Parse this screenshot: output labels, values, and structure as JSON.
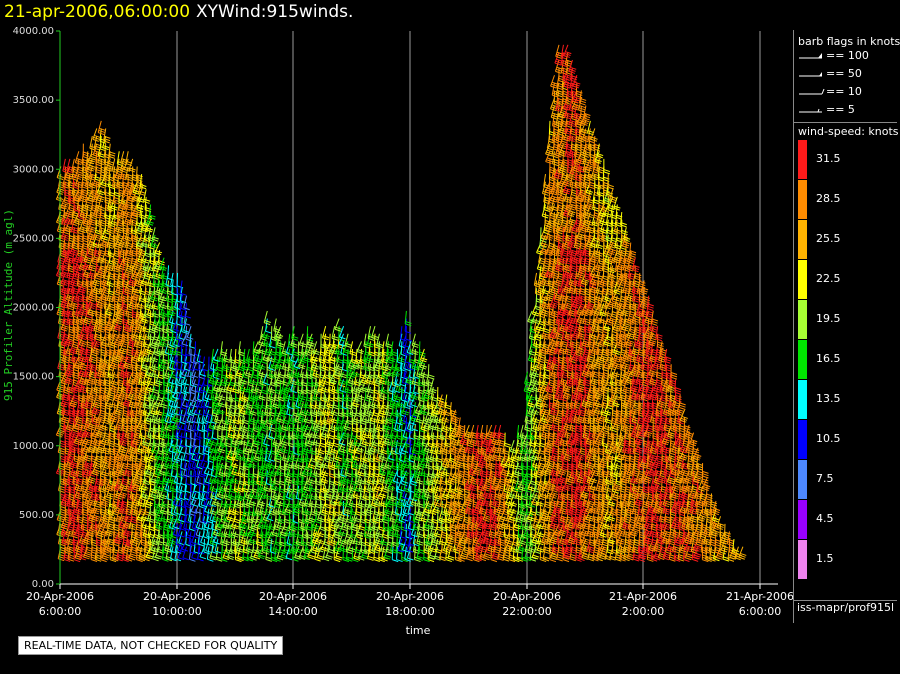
{
  "title": {
    "date": "21-apr-2006,06:00:00",
    "main": "XYWind:915winds."
  },
  "chart_data": {
    "type": "wind-barb time-height",
    "ylabel": "915 Profiler Altitude (m agl)",
    "xlabel": "time",
    "ylim": [
      0,
      4000
    ],
    "yticks": [
      "0.00",
      "500.00",
      "1000.00",
      "1500.00",
      "2000.00",
      "2500.00",
      "3000.00",
      "3500.00",
      "4000.00"
    ],
    "xticks": [
      {
        "date": "20-Apr-2006",
        "time": "6:00:00"
      },
      {
        "date": "20-Apr-2006",
        "time": "10:00:00"
      },
      {
        "date": "20-Apr-2006",
        "time": "14:00:00"
      },
      {
        "date": "20-Apr-2006",
        "time": "18:00:00"
      },
      {
        "date": "20-Apr-2006",
        "time": "22:00:00"
      },
      {
        "date": "21-Apr-2006",
        "time": "2:00:00"
      },
      {
        "date": "21-Apr-2006",
        "time": "6:00:00"
      }
    ],
    "grid": true,
    "profiles": [
      {
        "t": 0.05,
        "top": 3050,
        "speed": 29
      },
      {
        "t": 0.3,
        "top": 3100,
        "speed": 31
      },
      {
        "t": 0.55,
        "top": 3100,
        "speed": 31
      },
      {
        "t": 0.8,
        "top": 3100,
        "speed": 31
      },
      {
        "t": 1.05,
        "top": 3150,
        "speed": 30
      },
      {
        "t": 1.3,
        "top": 3200,
        "speed": 30
      },
      {
        "t": 1.55,
        "top": 3150,
        "speed": 29
      },
      {
        "t": 1.8,
        "top": 3250,
        "speed": 29
      },
      {
        "t": 2.05,
        "top": 3300,
        "speed": 28
      },
      {
        "t": 2.3,
        "top": 3350,
        "speed": 27
      },
      {
        "t": 2.55,
        "top": 3300,
        "speed": 27
      },
      {
        "t": 2.8,
        "top": 3200,
        "speed": 26
      },
      {
        "t": 3.05,
        "top": 3100,
        "speed": 27
      },
      {
        "t": 3.3,
        "top": 3150,
        "speed": 28
      },
      {
        "t": 3.55,
        "top": 3150,
        "speed": 29
      },
      {
        "t": 3.8,
        "top": 3150,
        "speed": 29
      },
      {
        "t": 4.05,
        "top": 3100,
        "speed": 28
      },
      {
        "t": 4.3,
        "top": 3050,
        "speed": 27
      },
      {
        "t": 4.55,
        "top": 3000,
        "speed": 25
      },
      {
        "t": 4.8,
        "top": 2900,
        "speed": 23
      },
      {
        "t": 5.05,
        "top": 2750,
        "speed": 21
      },
      {
        "t": 5.3,
        "top": 2600,
        "speed": 20
      },
      {
        "t": 5.55,
        "top": 2500,
        "speed": 19
      },
      {
        "t": 5.8,
        "top": 2400,
        "speed": 18
      },
      {
        "t": 6.05,
        "top": 2350,
        "speed": 17
      },
      {
        "t": 6.3,
        "top": 2300,
        "speed": 15
      },
      {
        "t": 6.55,
        "top": 2250,
        "speed": 13
      },
      {
        "t": 6.8,
        "top": 2200,
        "speed": 12
      },
      {
        "t": 7.05,
        "top": 2100,
        "speed": 11
      },
      {
        "t": 7.3,
        "top": 1900,
        "speed": 10
      },
      {
        "t": 7.55,
        "top": 1800,
        "speed": 10
      },
      {
        "t": 7.8,
        "top": 1700,
        "speed": 11
      },
      {
        "t": 8.05,
        "top": 1650,
        "speed": 12
      },
      {
        "t": 8.3,
        "top": 1650,
        "speed": 14
      },
      {
        "t": 8.55,
        "top": 1700,
        "speed": 16
      },
      {
        "t": 8.8,
        "top": 1700,
        "speed": 17
      },
      {
        "t": 9.05,
        "top": 1800,
        "speed": 18
      },
      {
        "t": 9.3,
        "top": 1750,
        "speed": 19
      },
      {
        "t": 9.55,
        "top": 1700,
        "speed": 19
      },
      {
        "t": 9.8,
        "top": 1750,
        "speed": 20
      },
      {
        "t": 10.05,
        "top": 1800,
        "speed": 20
      },
      {
        "t": 10.3,
        "top": 1700,
        "speed": 19
      },
      {
        "t": 10.55,
        "top": 1750,
        "speed": 18
      },
      {
        "t": 10.8,
        "top": 1800,
        "speed": 18
      },
      {
        "t": 11.05,
        "top": 1800,
        "speed": 19
      },
      {
        "t": 11.3,
        "top": 1900,
        "speed": 18
      },
      {
        "t": 11.55,
        "top": 2000,
        "speed": 17
      },
      {
        "t": 11.8,
        "top": 1900,
        "speed": 17
      },
      {
        "t": 12.05,
        "top": 1950,
        "speed": 18
      },
      {
        "t": 12.3,
        "top": 1900,
        "speed": 18
      },
      {
        "t": 12.55,
        "top": 1800,
        "speed": 18
      },
      {
        "t": 12.8,
        "top": 1850,
        "speed": 17
      },
      {
        "t": 13.05,
        "top": 1900,
        "speed": 17
      },
      {
        "t": 13.3,
        "top": 1800,
        "speed": 17
      },
      {
        "t": 13.55,
        "top": 1850,
        "speed": 18
      },
      {
        "t": 13.8,
        "top": 1900,
        "speed": 18
      },
      {
        "t": 14.05,
        "top": 1850,
        "speed": 19
      },
      {
        "t": 14.3,
        "top": 1800,
        "speed": 20
      },
      {
        "t": 14.55,
        "top": 1850,
        "speed": 21
      },
      {
        "t": 14.8,
        "top": 1900,
        "speed": 21
      },
      {
        "t": 15.05,
        "top": 1850,
        "speed": 22
      },
      {
        "t": 15.3,
        "top": 1900,
        "speed": 21
      },
      {
        "t": 15.55,
        "top": 1950,
        "speed": 19
      },
      {
        "t": 15.8,
        "top": 1900,
        "speed": 17
      },
      {
        "t": 16.05,
        "top": 1850,
        "speed": 18
      },
      {
        "t": 16.3,
        "top": 1800,
        "speed": 19
      },
      {
        "t": 16.55,
        "top": 1750,
        "speed": 20
      },
      {
        "t": 16.8,
        "top": 1800,
        "speed": 21
      },
      {
        "t": 17.05,
        "top": 1850,
        "speed": 20
      },
      {
        "t": 17.3,
        "top": 1900,
        "speed": 20
      },
      {
        "t": 17.55,
        "top": 1900,
        "speed": 21
      },
      {
        "t": 17.8,
        "top": 1850,
        "speed": 22
      },
      {
        "t": 18.05,
        "top": 1800,
        "speed": 20
      },
      {
        "t": 18.3,
        "top": 1850,
        "speed": 18
      },
      {
        "t": 18.55,
        "top": 1800,
        "speed": 17
      },
      {
        "t": 18.8,
        "top": 1750,
        "speed": 15
      },
      {
        "t": 19.05,
        "top": 1900,
        "speed": 14
      },
      {
        "t": 19.3,
        "top": 2000,
        "speed": 13
      },
      {
        "t": 19.55,
        "top": 1800,
        "speed": 14
      },
      {
        "t": 19.8,
        "top": 1850,
        "speed": 16
      },
      {
        "t": 20.05,
        "top": 1800,
        "speed": 18
      },
      {
        "t": 20.3,
        "top": 1700,
        "speed": 19
      },
      {
        "t": 20.55,
        "top": 1600,
        "speed": 20
      },
      {
        "t": 20.8,
        "top": 1500,
        "speed": 21
      },
      {
        "t": 21.05,
        "top": 1450,
        "speed": 22
      },
      {
        "t": 21.3,
        "top": 1400,
        "speed": 23
      },
      {
        "t": 21.55,
        "top": 1400,
        "speed": 24
      },
      {
        "t": 21.8,
        "top": 1350,
        "speed": 25
      },
      {
        "t": 22.05,
        "top": 1300,
        "speed": 26
      },
      {
        "t": 22.3,
        "top": 1250,
        "speed": 27
      },
      {
        "t": 22.55,
        "top": 1200,
        "speed": 28
      },
      {
        "t": 22.8,
        "top": 1200,
        "speed": 29
      },
      {
        "t": 23.05,
        "top": 1150,
        "speed": 30
      },
      {
        "t": 23.3,
        "top": 1200,
        "speed": 31
      },
      {
        "t": 23.55,
        "top": 1200,
        "speed": 31
      },
      {
        "t": 23.8,
        "top": 1200,
        "speed": 31
      },
      {
        "t": 24.05,
        "top": 1200,
        "speed": 30
      },
      {
        "t": 24.3,
        "top": 1200,
        "speed": 29
      },
      {
        "t": 24.55,
        "top": 1150,
        "speed": 28
      },
      {
        "t": 24.8,
        "top": 1100,
        "speed": 26
      },
      {
        "t": 25.05,
        "top": 1000,
        "speed": 24
      },
      {
        "t": 25.3,
        "top": 1050,
        "speed": 22
      },
      {
        "t": 25.55,
        "top": 1150,
        "speed": 20
      },
      {
        "t": 25.8,
        "top": 1200,
        "speed": 18
      },
      {
        "t": 26.05,
        "top": 1550,
        "speed": 18
      },
      {
        "t": 26.3,
        "top": 2000,
        "speed": 20
      },
      {
        "t": 26.55,
        "top": 2300,
        "speed": 22
      },
      {
        "t": 26.8,
        "top": 2600,
        "speed": 24
      },
      {
        "t": 27.05,
        "top": 3000,
        "speed": 26
      },
      {
        "t": 27.3,
        "top": 3400,
        "speed": 28
      },
      {
        "t": 27.55,
        "top": 3700,
        "speed": 29
      },
      {
        "t": 27.8,
        "top": 3900,
        "speed": 30
      },
      {
        "t": 28.05,
        "top": 3950,
        "speed": 30
      },
      {
        "t": 28.3,
        "top": 3900,
        "speed": 31
      },
      {
        "t": 28.55,
        "top": 3800,
        "speed": 31
      },
      {
        "t": 28.8,
        "top": 3700,
        "speed": 31
      },
      {
        "t": 29.05,
        "top": 3600,
        "speed": 30
      },
      {
        "t": 29.3,
        "top": 3500,
        "speed": 29
      },
      {
        "t": 29.55,
        "top": 3400,
        "speed": 28
      },
      {
        "t": 29.8,
        "top": 3300,
        "speed": 27
      },
      {
        "t": 30.05,
        "top": 3200,
        "speed": 27
      },
      {
        "t": 30.3,
        "top": 3100,
        "speed": 26
      },
      {
        "t": 30.55,
        "top": 3000,
        "speed": 25
      },
      {
        "t": 30.8,
        "top": 2900,
        "speed": 26
      },
      {
        "t": 31.05,
        "top": 2800,
        "speed": 26
      },
      {
        "t": 31.3,
        "top": 2700,
        "speed": 27
      },
      {
        "t": 31.55,
        "top": 2600,
        "speed": 28
      },
      {
        "t": 31.8,
        "top": 2500,
        "speed": 28
      },
      {
        "t": 32.05,
        "top": 2400,
        "speed": 29
      },
      {
        "t": 32.3,
        "top": 2300,
        "speed": 30
      },
      {
        "t": 32.55,
        "top": 2200,
        "speed": 30
      },
      {
        "t": 32.8,
        "top": 2100,
        "speed": 31
      },
      {
        "t": 33.05,
        "top": 2000,
        "speed": 31
      },
      {
        "t": 33.3,
        "top": 1900,
        "speed": 31
      },
      {
        "t": 33.55,
        "top": 1800,
        "speed": 30
      },
      {
        "t": 33.8,
        "top": 1700,
        "speed": 30
      },
      {
        "t": 34.05,
        "top": 1600,
        "speed": 29
      },
      {
        "t": 34.3,
        "top": 1500,
        "speed": 29
      },
      {
        "t": 34.55,
        "top": 1400,
        "speed": 29
      },
      {
        "t": 34.8,
        "top": 1300,
        "speed": 29
      },
      {
        "t": 35.05,
        "top": 1200,
        "speed": 28
      },
      {
        "t": 35.3,
        "top": 1100,
        "speed": 28
      },
      {
        "t": 35.55,
        "top": 1000,
        "speed": 28
      },
      {
        "t": 35.8,
        "top": 900,
        "speed": 27
      },
      {
        "t": 36.05,
        "top": 800,
        "speed": 27
      },
      {
        "t": 36.3,
        "top": 700,
        "speed": 27
      },
      {
        "t": 36.55,
        "top": 600,
        "speed": 26
      },
      {
        "t": 36.8,
        "top": 500,
        "speed": 26
      },
      {
        "t": 37.05,
        "top": 450,
        "speed": 25
      },
      {
        "t": 37.3,
        "top": 400,
        "speed": 25
      },
      {
        "t": 37.55,
        "top": 350,
        "speed": 25
      },
      {
        "t": 37.8,
        "top": 300,
        "speed": 25
      },
      {
        "t": 38.05,
        "top": 275,
        "speed": 24
      },
      {
        "t": 38.3,
        "top": 250,
        "speed": 24
      },
      {
        "t": 38.55,
        "top": 225,
        "speed": 24
      },
      {
        "t": 38.8,
        "top": 200,
        "speed": 24
      }
    ]
  },
  "legend": {
    "flags_title": "barb flags in knots",
    "flags": [
      {
        "label": "== 100",
        "type": "pennant"
      },
      {
        "label": "== 50",
        "type": "flag"
      },
      {
        "label": "== 10",
        "type": "full"
      },
      {
        "label": "== 5",
        "type": "half"
      }
    ],
    "speed_title": "wind-speed: knots",
    "speeds": [
      {
        "label": "31.5",
        "color": "#ff1a1a"
      },
      {
        "label": "28.5",
        "color": "#ff8c00"
      },
      {
        "label": "25.5",
        "color": "#ffb300"
      },
      {
        "label": "22.5",
        "color": "#ffff00"
      },
      {
        "label": "19.5",
        "color": "#a6ff33"
      },
      {
        "label": "16.5",
        "color": "#00e600"
      },
      {
        "label": "13.5",
        "color": "#00ffff"
      },
      {
        "label": "10.5",
        "color": "#0000ff"
      },
      {
        "label": "7.5",
        "color": "#4d88ff"
      },
      {
        "label": "4.5",
        "color": "#9900ff"
      },
      {
        "label": "1.5",
        "color": "#ee82ee"
      }
    ]
  },
  "source": "iss-mapr/prof915l",
  "qc_note": "REAL-TIME DATA, NOT CHECKED FOR QUALITY"
}
